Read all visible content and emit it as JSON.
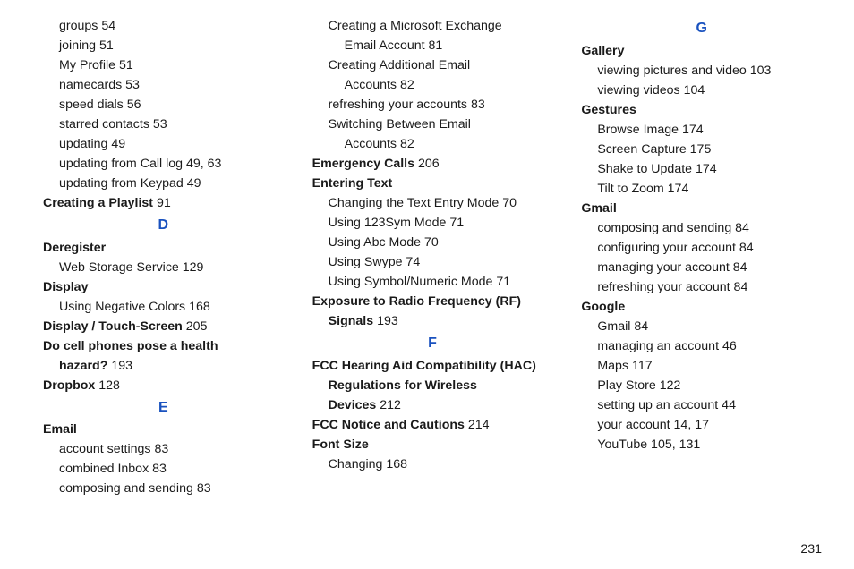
{
  "colors": {
    "text": "#1a1a1a",
    "letterHeading": "#1a52bf",
    "background": "#ffffff"
  },
  "page_number": "231",
  "columns": [
    [
      {
        "kind": "line",
        "indent": 1,
        "bold": false,
        "text": "groups",
        "page": "54"
      },
      {
        "kind": "line",
        "indent": 1,
        "bold": false,
        "text": "joining",
        "page": "51"
      },
      {
        "kind": "line",
        "indent": 1,
        "bold": false,
        "text": "My Profile",
        "page": "51"
      },
      {
        "kind": "line",
        "indent": 1,
        "bold": false,
        "text": "namecards",
        "page": "53"
      },
      {
        "kind": "line",
        "indent": 1,
        "bold": false,
        "text": "speed dials",
        "page": "56"
      },
      {
        "kind": "line",
        "indent": 1,
        "bold": false,
        "text": "starred contacts",
        "page": "53"
      },
      {
        "kind": "line",
        "indent": 1,
        "bold": false,
        "text": "updating",
        "page": "49"
      },
      {
        "kind": "line",
        "indent": 1,
        "bold": false,
        "text": "updating from Call log",
        "page": "49",
        "page2": "63"
      },
      {
        "kind": "line",
        "indent": 1,
        "bold": false,
        "text": "updating from Keypad",
        "page": "49"
      },
      {
        "kind": "line",
        "indent": 0,
        "bold": true,
        "text": "Creating a Playlist",
        "page": "91"
      },
      {
        "kind": "letter",
        "label": "D"
      },
      {
        "kind": "line",
        "indent": 0,
        "bold": true,
        "text": "Deregister"
      },
      {
        "kind": "line",
        "indent": 1,
        "bold": false,
        "text": "Web Storage Service",
        "page": "129"
      },
      {
        "kind": "line",
        "indent": 0,
        "bold": true,
        "text": "Display"
      },
      {
        "kind": "line",
        "indent": 1,
        "bold": false,
        "text": "Using Negative Colors",
        "page": "168"
      },
      {
        "kind": "line",
        "indent": 0,
        "bold": true,
        "text": "Display / Touch-Screen",
        "page": "205"
      },
      {
        "kind": "line",
        "indent": 0,
        "bold": true,
        "text": "Do cell phones pose a health"
      },
      {
        "kind": "line",
        "indent": 1,
        "bold": true,
        "text": "hazard?",
        "page": "193"
      },
      {
        "kind": "line",
        "indent": 0,
        "bold": true,
        "text": "Dropbox",
        "page": "128"
      },
      {
        "kind": "letter",
        "label": "E"
      },
      {
        "kind": "line",
        "indent": 0,
        "bold": true,
        "text": "Email"
      },
      {
        "kind": "line",
        "indent": 1,
        "bold": false,
        "text": "account settings",
        "page": "83"
      },
      {
        "kind": "line",
        "indent": 1,
        "bold": false,
        "text": "combined Inbox",
        "page": "83"
      },
      {
        "kind": "line",
        "indent": 1,
        "bold": false,
        "text": "composing and sending",
        "page": "83"
      }
    ],
    [
      {
        "kind": "line",
        "indent": 1,
        "bold": false,
        "text": "Creating a Microsoft Exchange"
      },
      {
        "kind": "line",
        "indent": 2,
        "bold": false,
        "text": "Email Account",
        "page": "81"
      },
      {
        "kind": "line",
        "indent": 1,
        "bold": false,
        "text": "Creating Additional Email"
      },
      {
        "kind": "line",
        "indent": 2,
        "bold": false,
        "text": "Accounts",
        "page": "82"
      },
      {
        "kind": "line",
        "indent": 1,
        "bold": false,
        "text": "refreshing your accounts",
        "page": "83"
      },
      {
        "kind": "line",
        "indent": 1,
        "bold": false,
        "text": "Switching Between Email"
      },
      {
        "kind": "line",
        "indent": 2,
        "bold": false,
        "text": "Accounts",
        "page": "82"
      },
      {
        "kind": "line",
        "indent": 0,
        "bold": true,
        "text": "Emergency Calls",
        "page": "206"
      },
      {
        "kind": "line",
        "indent": 0,
        "bold": true,
        "text": "Entering Text"
      },
      {
        "kind": "line",
        "indent": 1,
        "bold": false,
        "text": "Changing the Text Entry Mode",
        "page": "70"
      },
      {
        "kind": "line",
        "indent": 1,
        "bold": false,
        "text": "Using 123Sym Mode",
        "page": "71"
      },
      {
        "kind": "line",
        "indent": 1,
        "bold": false,
        "text": "Using Abc Mode",
        "page": "70"
      },
      {
        "kind": "line",
        "indent": 1,
        "bold": false,
        "text": "Using Swype",
        "page": "74"
      },
      {
        "kind": "line",
        "indent": 1,
        "bold": false,
        "text": "Using Symbol/Numeric Mode",
        "page": "71"
      },
      {
        "kind": "line",
        "indent": 0,
        "bold": true,
        "text": "Exposure to Radio Frequency (RF)"
      },
      {
        "kind": "line",
        "indent": 1,
        "bold": true,
        "text": "Signals",
        "page": "193"
      },
      {
        "kind": "letter",
        "label": "F"
      },
      {
        "kind": "line",
        "indent": 0,
        "bold": true,
        "text": "FCC Hearing Aid Compatibility (HAC)"
      },
      {
        "kind": "line",
        "indent": 1,
        "bold": true,
        "text": "Regulations for Wireless"
      },
      {
        "kind": "line",
        "indent": 1,
        "bold": true,
        "text": "Devices",
        "page": "212"
      },
      {
        "kind": "line",
        "indent": 0,
        "bold": true,
        "text": "FCC Notice and Cautions",
        "page": "214"
      },
      {
        "kind": "line",
        "indent": 0,
        "bold": true,
        "text": "Font Size"
      },
      {
        "kind": "line",
        "indent": 1,
        "bold": false,
        "text": "Changing",
        "page": "168"
      }
    ],
    [
      {
        "kind": "letter",
        "label": "G"
      },
      {
        "kind": "line",
        "indent": 0,
        "bold": true,
        "text": "Gallery"
      },
      {
        "kind": "line",
        "indent": 1,
        "bold": false,
        "text": "viewing pictures and video",
        "page": "103"
      },
      {
        "kind": "line",
        "indent": 1,
        "bold": false,
        "text": "viewing videos",
        "page": "104"
      },
      {
        "kind": "line",
        "indent": 0,
        "bold": true,
        "text": "Gestures"
      },
      {
        "kind": "line",
        "indent": 1,
        "bold": false,
        "text": "Browse Image",
        "page": "174"
      },
      {
        "kind": "line",
        "indent": 1,
        "bold": false,
        "text": "Screen Capture",
        "page": "175"
      },
      {
        "kind": "line",
        "indent": 1,
        "bold": false,
        "text": "Shake to Update",
        "page": "174"
      },
      {
        "kind": "line",
        "indent": 1,
        "bold": false,
        "text": "Tilt to Zoom",
        "page": "174"
      },
      {
        "kind": "line",
        "indent": 0,
        "bold": true,
        "text": "Gmail"
      },
      {
        "kind": "line",
        "indent": 1,
        "bold": false,
        "text": "composing and sending",
        "page": "84"
      },
      {
        "kind": "line",
        "indent": 1,
        "bold": false,
        "text": "configuring your account",
        "page": "84"
      },
      {
        "kind": "line",
        "indent": 1,
        "bold": false,
        "text": "managing your account",
        "page": "84"
      },
      {
        "kind": "line",
        "indent": 1,
        "bold": false,
        "text": "refreshing your account",
        "page": "84"
      },
      {
        "kind": "line",
        "indent": 0,
        "bold": true,
        "text": "Google"
      },
      {
        "kind": "line",
        "indent": 1,
        "bold": false,
        "text": "Gmail",
        "page": "84"
      },
      {
        "kind": "line",
        "indent": 1,
        "bold": false,
        "text": "managing an account",
        "page": "46"
      },
      {
        "kind": "line",
        "indent": 1,
        "bold": false,
        "text": "Maps",
        "page": "117"
      },
      {
        "kind": "line",
        "indent": 1,
        "bold": false,
        "text": "Play Store",
        "page": "122"
      },
      {
        "kind": "line",
        "indent": 1,
        "bold": false,
        "text": "setting up an account",
        "page": "44"
      },
      {
        "kind": "line",
        "indent": 1,
        "bold": false,
        "text": "your account",
        "page": "14",
        "page2": "17"
      },
      {
        "kind": "line",
        "indent": 1,
        "bold": false,
        "text": "YouTube",
        "page": "105",
        "page2": "131"
      }
    ]
  ]
}
